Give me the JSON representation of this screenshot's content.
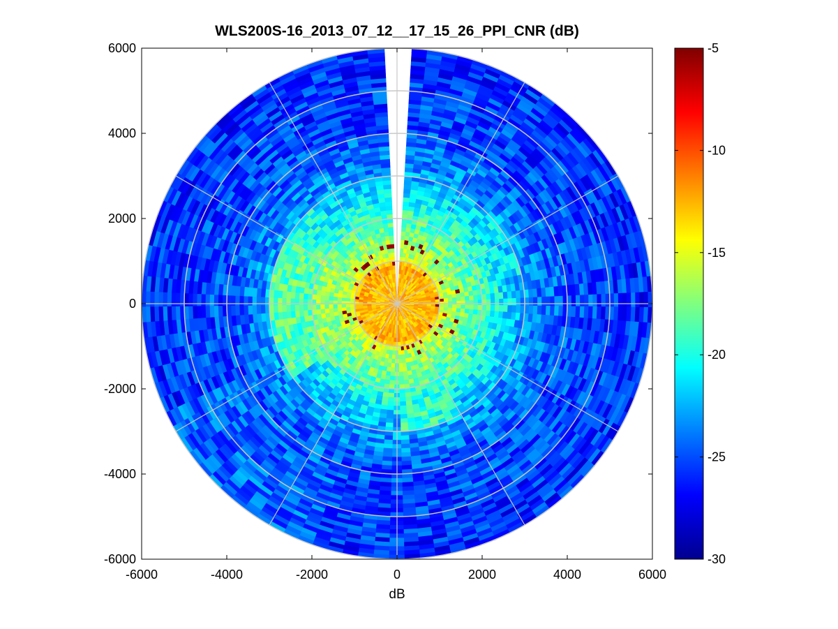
{
  "chart_data": {
    "type": "heatmap",
    "subtype": "polar-ppi-scan",
    "title": "WLS200S-16_2013_07_12__17_15_26_PPI_CNR (dB)",
    "xlabel": "dB",
    "ylabel": "",
    "xlim": [
      -6000,
      6000
    ],
    "ylim": [
      -6000,
      6000
    ],
    "xticks": [
      "-6000",
      "-4000",
      "-2000",
      "0",
      "2000",
      "4000",
      "6000"
    ],
    "yticks": [
      "6000",
      "4000",
      "2000",
      "0",
      "-2000",
      "-4000",
      "-6000"
    ],
    "max_range": 6000,
    "range_rings": [
      1000,
      2000,
      3000,
      4000,
      5000,
      6000
    ],
    "spoke_angles_deg": [
      0,
      30,
      60,
      90,
      120,
      150,
      180,
      210,
      240,
      270,
      300,
      330
    ],
    "gap_azimuth_deg": [
      -3.5,
      3.5
    ],
    "colorbar": {
      "colormap": "jet",
      "range": [
        -30,
        -5
      ],
      "ticks": [
        "-5",
        "-10",
        "-15",
        "-20",
        "-25",
        "-30"
      ]
    },
    "cnr_profile": [
      {
        "range": 0,
        "cnr_db": -12
      },
      {
        "range": 500,
        "cnr_db": -13
      },
      {
        "range": 900,
        "cnr_db": -12
      },
      {
        "range": 1100,
        "cnr_db": -16
      },
      {
        "range": 2000,
        "cnr_db": -19
      },
      {
        "range": 3000,
        "cnr_db": -23
      },
      {
        "range": 4000,
        "cnr_db": -25
      },
      {
        "range": 6000,
        "cnr_db": -26
      }
    ],
    "elevated_sectors": [
      {
        "az_from_deg": 20,
        "az_to_deg": 78,
        "range_to": 3000,
        "cnr_db": -20
      },
      {
        "az_from_deg": 236,
        "az_to_deg": 304,
        "range_to": 3000,
        "cnr_db": -17
      },
      {
        "az_from_deg": 150,
        "az_to_deg": 180,
        "range_to": 3000,
        "cnr_db": -18
      },
      {
        "az_from_deg": 198,
        "az_to_deg": 246,
        "range_to": 6000,
        "cnr_db": -23
      },
      {
        "az_from_deg": 300,
        "az_to_deg": 322,
        "range_to": 3000,
        "cnr_db": -19
      }
    ]
  }
}
